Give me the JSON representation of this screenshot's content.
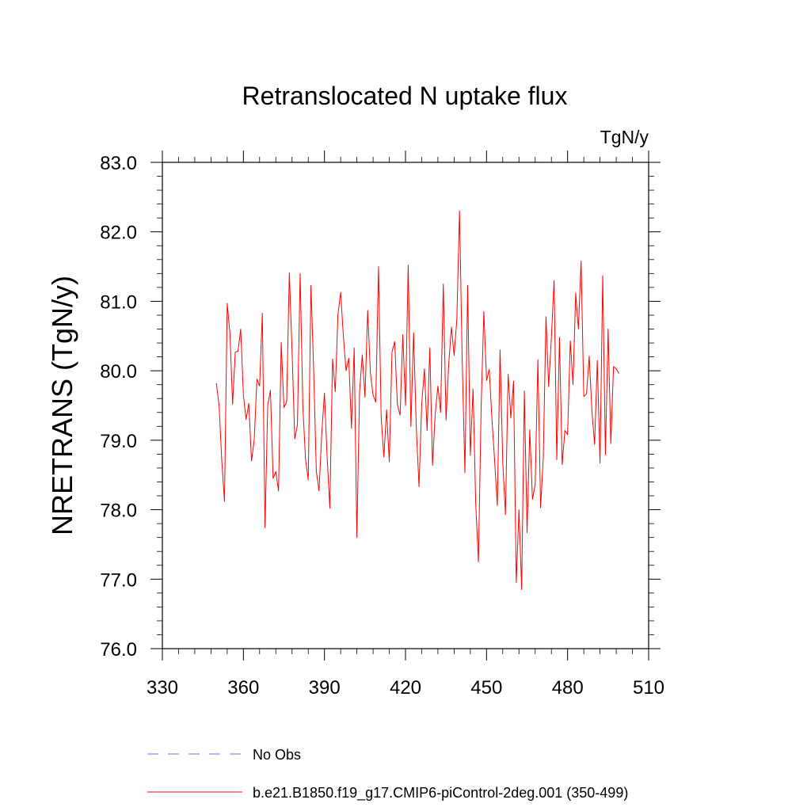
{
  "chart_data": {
    "type": "line",
    "title": "Retranslocated N uptake flux",
    "units": "TgN/y",
    "ylabel": "NRETRANS  (TgN/y)",
    "xlabel": "",
    "xlim": [
      330,
      510
    ],
    "ylim": [
      76.0,
      83.0
    ],
    "x_ticks": [
      330,
      360,
      390,
      420,
      450,
      480,
      510
    ],
    "x_tick_labels": [
      "330",
      "360",
      "390",
      "420",
      "450",
      "480",
      "510"
    ],
    "y_ticks": [
      76.0,
      77.0,
      78.0,
      79.0,
      80.0,
      81.0,
      82.0,
      83.0
    ],
    "y_tick_labels": [
      "76.0",
      "77.0",
      "78.0",
      "79.0",
      "80.0",
      "81.0",
      "82.0",
      "83.0"
    ],
    "grid": false,
    "legend_position": "bottom",
    "series": [
      {
        "name": "b.e21.B1850.f19_g17.CMIP6-piControl-2deg.001 (350-499)",
        "color": "#ff0000",
        "dash": "solid",
        "x_start": 350,
        "x_step": 1,
        "values": [
          79.82,
          79.5,
          78.7,
          78.12,
          80.97,
          80.55,
          79.52,
          80.27,
          80.28,
          80.6,
          79.65,
          79.3,
          79.53,
          78.7,
          79.0,
          79.88,
          79.78,
          80.83,
          77.74,
          79.5,
          79.72,
          78.45,
          78.55,
          78.27,
          80.41,
          79.47,
          79.55,
          81.41,
          80.3,
          79.02,
          79.22,
          81.4,
          79.49,
          78.72,
          78.43,
          81.23,
          80.02,
          78.55,
          78.27,
          79.1,
          79.68,
          78.75,
          78.02,
          80.17,
          79.7,
          80.81,
          81.13,
          80.5,
          80.0,
          80.18,
          79.17,
          80.33,
          77.6,
          79.7,
          80.23,
          79.62,
          80.87,
          79.97,
          79.65,
          79.55,
          81.5,
          79.32,
          78.76,
          79.44,
          78.69,
          80.27,
          80.42,
          79.51,
          79.36,
          80.52,
          79.5,
          81.52,
          79.2,
          80.55,
          79.18,
          78.33,
          79.52,
          80.03,
          79.14,
          80.33,
          78.64,
          79.38,
          79.78,
          79.4,
          81.25,
          79.29,
          80.1,
          80.63,
          80.22,
          80.74,
          82.3,
          80.13,
          78.53,
          81.23,
          78.78,
          79.74,
          78.08,
          77.25,
          79.48,
          80.85,
          79.86,
          80.02,
          79.3,
          78.7,
          78.06,
          80.3,
          78.68,
          77.93,
          79.95,
          79.32,
          79.85,
          76.95,
          78.0,
          76.85,
          79.71,
          77.67,
          79.15,
          78.15,
          78.36,
          80.16,
          78.03,
          78.74,
          80.78,
          79.77,
          80.48,
          81.3,
          78.72,
          80.48,
          78.65,
          79.14,
          79.08,
          80.43,
          79.8,
          81.12,
          80.6,
          81.58,
          79.63,
          79.67,
          80.21,
          79.42,
          78.94,
          80.15,
          78.67,
          81.37,
          78.79,
          80.6,
          78.95,
          80.06,
          80.03,
          79.96
        ]
      },
      {
        "name": "No Obs",
        "color": "#7b6fc9",
        "dash": "dashed",
        "values": []
      }
    ]
  }
}
